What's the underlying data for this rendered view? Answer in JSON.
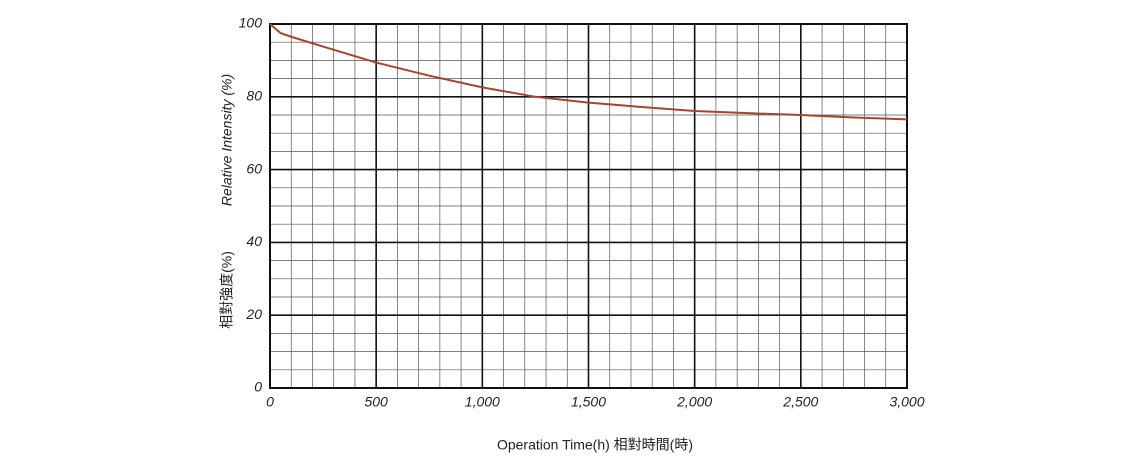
{
  "chart_data": {
    "type": "line",
    "y_label": "Relative Intensity (%)",
    "y_label_2": "相對強度(%)",
    "x_label": "Operation Time(h) 相對時間(時)",
    "x": [
      0,
      50,
      100,
      250,
      500,
      750,
      1000,
      1250,
      1500,
      1750,
      2000,
      2250,
      2500,
      2750,
      3000
    ],
    "series": [
      {
        "color": "#a3462e",
        "values": [
          100,
          97.5,
          96.5,
          93.8,
          89.4,
          85.8,
          82.6,
          80,
          78.4,
          77.2,
          76.1,
          75.5,
          75,
          74.3,
          73.8
        ]
      }
    ],
    "xlim": [
      0,
      3000
    ],
    "xticks": [
      0,
      500,
      {
        "value": 1000,
        "label": "1,000"
      },
      {
        "value": 1500,
        "label": "1,500"
      },
      {
        "value": 2000,
        "label": "2,000"
      },
      {
        "value": 2500,
        "label": "2,500"
      },
      {
        "value": 3000,
        "label": "3,000"
      }
    ],
    "ylim": [
      0,
      100
    ],
    "yticks": [
      0,
      20,
      40,
      60,
      80,
      100
    ],
    "grid": true
  }
}
